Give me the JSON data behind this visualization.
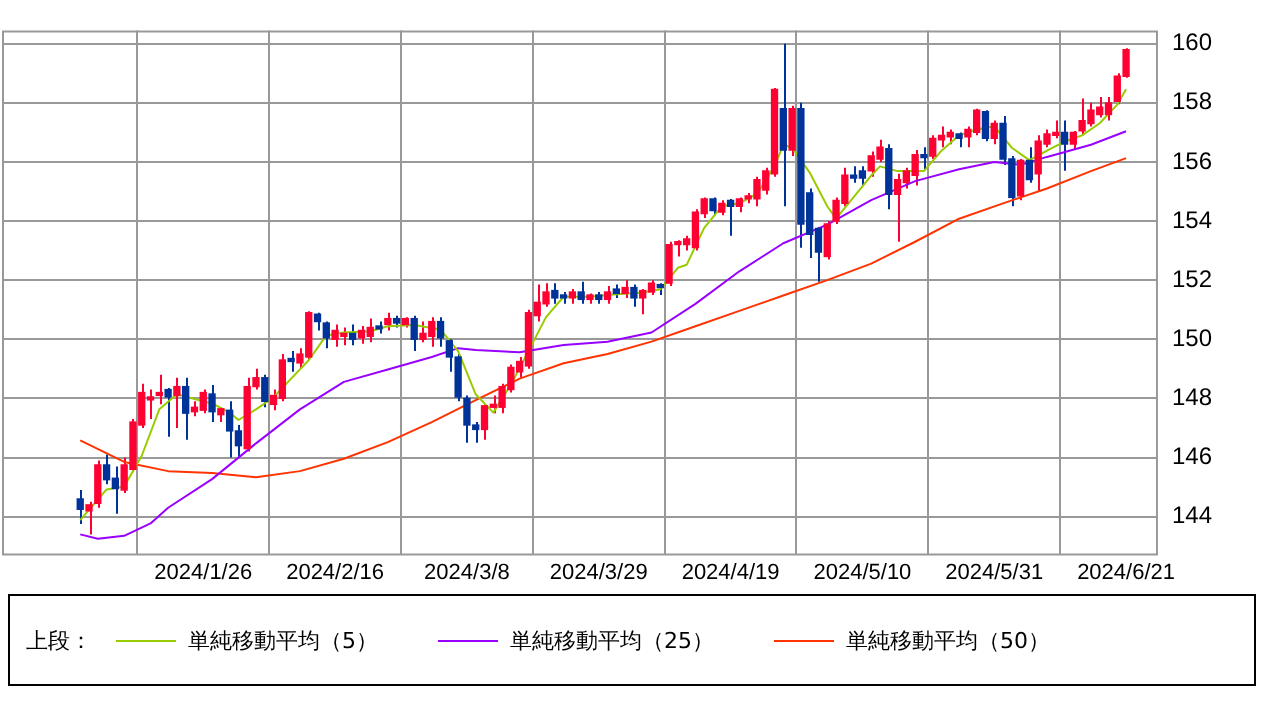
{
  "chart_data": {
    "type": "candlestick",
    "legend_title": "上段：",
    "legend": "bottom",
    "grid": true,
    "categories": [
      null,
      null,
      null,
      null,
      null,
      null,
      null,
      null,
      null,
      null,
      null,
      null,
      null,
      null,
      "2024/1/26",
      null,
      null,
      null,
      null,
      null,
      null,
      null,
      null,
      null,
      null,
      null,
      null,
      null,
      null,
      "2024/2/16",
      null,
      null,
      null,
      null,
      null,
      null,
      null,
      null,
      null,
      null,
      null,
      null,
      null,
      null,
      "2024/3/8",
      null,
      null,
      null,
      null,
      null,
      null,
      null,
      null,
      null,
      null,
      null,
      null,
      null,
      null,
      "2024/3/29",
      null,
      null,
      null,
      null,
      null,
      null,
      null,
      null,
      null,
      null,
      null,
      null,
      null,
      null,
      "2024/4/19",
      null,
      null,
      null,
      null,
      null,
      null,
      null,
      null,
      null,
      null,
      null,
      null,
      null,
      null,
      "2024/5/10",
      null,
      null,
      null,
      null,
      null,
      null,
      null,
      null,
      null,
      null,
      null,
      null,
      null,
      null,
      "2024/5/31",
      null,
      null,
      null,
      null,
      null,
      null,
      null,
      null,
      null,
      null,
      null,
      null,
      null,
      null,
      "2024/6/21"
    ],
    "ohlc": [
      [
        144.6,
        144.9,
        143.75,
        144.25
      ],
      [
        144.2,
        144.5,
        143.4,
        144.4
      ],
      [
        144.45,
        145.9,
        144.3,
        145.75
      ],
      [
        145.75,
        146.1,
        145.1,
        145.25
      ],
      [
        145.3,
        145.7,
        144.1,
        144.95
      ],
      [
        144.9,
        146.0,
        144.8,
        145.75
      ],
      [
        145.6,
        147.3,
        145.5,
        147.2
      ],
      [
        147.1,
        148.5,
        147.0,
        148.2
      ],
      [
        147.95,
        148.3,
        147.3,
        148.05
      ],
      [
        148.1,
        148.8,
        147.8,
        148.2
      ],
      [
        148.3,
        148.35,
        146.7,
        148.05
      ],
      [
        148.1,
        148.7,
        147.0,
        148.4
      ],
      [
        148.4,
        148.7,
        146.6,
        147.5
      ],
      [
        147.55,
        147.9,
        147.4,
        147.7
      ],
      [
        147.6,
        148.3,
        147.5,
        148.2
      ],
      [
        148.15,
        148.45,
        147.2,
        147.55
      ],
      [
        147.45,
        147.7,
        147.2,
        147.65
      ],
      [
        147.6,
        147.9,
        146.0,
        146.9
      ],
      [
        146.9,
        147.1,
        146.0,
        146.4
      ],
      [
        146.3,
        148.7,
        146.2,
        148.4
      ],
      [
        148.4,
        149.0,
        148.3,
        148.7
      ],
      [
        148.7,
        148.8,
        147.7,
        147.9
      ],
      [
        147.8,
        148.3,
        147.6,
        148.1
      ],
      [
        148.0,
        149.5,
        147.9,
        149.3
      ],
      [
        149.35,
        149.6,
        148.9,
        149.25
      ],
      [
        149.2,
        149.7,
        149.0,
        149.5
      ],
      [
        149.4,
        150.95,
        149.3,
        150.9
      ],
      [
        150.85,
        150.9,
        150.3,
        150.6
      ],
      [
        150.55,
        150.6,
        149.7,
        150.05
      ],
      [
        150.0,
        150.5,
        149.75,
        150.3
      ],
      [
        150.1,
        150.4,
        149.8,
        150.2
      ],
      [
        150.2,
        150.5,
        149.8,
        150.0
      ],
      [
        150.05,
        150.45,
        149.85,
        150.3
      ],
      [
        150.1,
        150.7,
        149.9,
        150.4
      ],
      [
        150.45,
        150.6,
        150.2,
        150.35
      ],
      [
        150.5,
        150.9,
        150.3,
        150.7
      ],
      [
        150.7,
        150.8,
        150.4,
        150.55
      ],
      [
        150.5,
        150.75,
        150.4,
        150.7
      ],
      [
        150.7,
        150.8,
        149.6,
        150.0
      ],
      [
        150.0,
        150.6,
        149.9,
        150.2
      ],
      [
        150.1,
        150.75,
        149.75,
        150.6
      ],
      [
        150.6,
        150.75,
        149.75,
        150.05
      ],
      [
        149.95,
        150.0,
        148.9,
        149.4
      ],
      [
        149.4,
        149.5,
        147.9,
        148.05
      ],
      [
        148.0,
        148.1,
        146.5,
        147.1
      ],
      [
        147.1,
        147.2,
        146.5,
        146.95
      ],
      [
        146.95,
        147.8,
        146.6,
        147.75
      ],
      [
        147.7,
        148.1,
        147.5,
        147.8
      ],
      [
        147.7,
        148.5,
        147.5,
        148.4
      ],
      [
        148.3,
        149.15,
        148.2,
        149.05
      ],
      [
        148.9,
        149.4,
        148.7,
        149.25
      ],
      [
        149.1,
        151.0,
        149.0,
        150.9
      ],
      [
        150.8,
        151.85,
        150.6,
        151.25
      ],
      [
        151.2,
        151.9,
        151.1,
        151.6
      ],
      [
        151.65,
        151.9,
        151.2,
        151.4
      ],
      [
        151.5,
        151.6,
        151.2,
        151.4
      ],
      [
        151.4,
        151.7,
        151.2,
        151.6
      ],
      [
        151.6,
        151.95,
        151.2,
        151.35
      ],
      [
        151.35,
        151.55,
        151.2,
        151.5
      ],
      [
        151.5,
        151.6,
        151.2,
        151.35
      ],
      [
        151.35,
        151.8,
        151.2,
        151.6
      ],
      [
        151.7,
        151.85,
        151.4,
        151.55
      ],
      [
        151.55,
        152.0,
        151.4,
        151.75
      ],
      [
        151.75,
        151.85,
        151.1,
        151.4
      ],
      [
        151.4,
        151.7,
        150.85,
        151.65
      ],
      [
        151.6,
        152.0,
        151.5,
        151.9
      ],
      [
        151.85,
        151.9,
        151.5,
        151.75
      ],
      [
        151.9,
        153.3,
        151.8,
        153.2
      ],
      [
        153.2,
        153.35,
        152.8,
        153.3
      ],
      [
        153.2,
        153.5,
        153.0,
        153.4
      ],
      [
        153.1,
        154.4,
        153.0,
        154.3
      ],
      [
        154.25,
        154.8,
        154.1,
        154.75
      ],
      [
        154.75,
        154.8,
        154.2,
        154.35
      ],
      [
        154.3,
        154.7,
        154.2,
        154.6
      ],
      [
        154.7,
        154.75,
        153.5,
        154.5
      ],
      [
        154.5,
        154.8,
        154.3,
        154.75
      ],
      [
        154.75,
        154.95,
        154.6,
        154.85
      ],
      [
        154.75,
        155.5,
        154.5,
        155.4
      ],
      [
        155.05,
        155.8,
        154.9,
        155.7
      ],
      [
        155.6,
        158.5,
        155.5,
        158.45
      ],
      [
        157.8,
        160.0,
        154.5,
        156.4
      ],
      [
        156.4,
        157.9,
        156.2,
        157.8
      ],
      [
        157.8,
        158.0,
        153.1,
        153.9
      ],
      [
        154.95,
        155.1,
        152.75,
        153.55
      ],
      [
        153.75,
        153.8,
        151.95,
        152.95
      ],
      [
        152.8,
        154.0,
        152.7,
        153.9
      ],
      [
        154.0,
        154.8,
        153.9,
        154.7
      ],
      [
        154.6,
        155.8,
        154.5,
        155.55
      ],
      [
        155.55,
        155.85,
        155.3,
        155.45
      ],
      [
        155.7,
        155.85,
        155.2,
        155.45
      ],
      [
        155.7,
        156.35,
        155.5,
        156.2
      ],
      [
        156.1,
        156.75,
        156.0,
        156.5
      ],
      [
        156.45,
        156.6,
        154.4,
        154.9
      ],
      [
        154.9,
        155.6,
        153.3,
        155.4
      ],
      [
        155.3,
        155.8,
        155.1,
        155.7
      ],
      [
        155.55,
        156.4,
        155.2,
        156.25
      ],
      [
        156.25,
        156.5,
        155.75,
        156.15
      ],
      [
        156.2,
        156.9,
        156.1,
        156.8
      ],
      [
        156.75,
        157.2,
        156.5,
        156.9
      ],
      [
        156.85,
        157.1,
        156.6,
        157.0
      ],
      [
        156.95,
        157.0,
        156.5,
        156.8
      ],
      [
        156.85,
        157.2,
        156.5,
        157.1
      ],
      [
        157.0,
        157.8,
        156.9,
        157.75
      ],
      [
        157.7,
        157.75,
        156.7,
        156.8
      ],
      [
        156.8,
        157.4,
        156.6,
        157.3
      ],
      [
        157.3,
        157.55,
        155.9,
        156.1
      ],
      [
        156.1,
        156.2,
        154.5,
        154.8
      ],
      [
        154.85,
        156.1,
        154.7,
        156.05
      ],
      [
        156.05,
        156.5,
        155.3,
        155.4
      ],
      [
        155.6,
        156.9,
        155.0,
        156.7
      ],
      [
        156.6,
        157.1,
        156.5,
        156.95
      ],
      [
        156.9,
        157.4,
        156.8,
        157.0
      ],
      [
        157.0,
        157.4,
        155.7,
        156.6
      ],
      [
        156.6,
        157.05,
        156.4,
        157.0
      ],
      [
        157.05,
        158.15,
        156.9,
        157.4
      ],
      [
        157.3,
        158.0,
        157.2,
        157.75
      ],
      [
        157.6,
        158.2,
        157.5,
        157.85
      ],
      [
        157.6,
        158.2,
        157.4,
        158.0
      ],
      [
        158.05,
        159.0,
        157.95,
        158.9
      ],
      [
        158.9,
        159.85,
        158.85,
        159.8
      ]
    ],
    "series": [
      {
        "name": "単純移動平均（5）",
        "type": "line",
        "color": "#99cc00",
        "values": [
          143.88,
          null,
          null,
          144.92,
          null,
          145.02,
          null,
          146.06,
          null,
          147.63,
          null,
          148.14,
          null,
          147.98,
          null,
          147.83,
          null,
          147.52,
          147.27,
          null,
          147.63,
          null,
          148.04,
          null,
          148.67,
          null,
          149.29,
          null,
          150.13,
          null,
          150.23,
          null,
          null,
          150.27,
          null,
          150.44,
          null,
          null,
          150.48,
          null,
          null,
          150.33,
          null,
          149.6,
          null,
          148.14,
          null,
          147.52,
          null,
          148.46,
          null,
          149.6,
          null,
          150.75,
          null,
          151.44,
          null,
          null,
          151.44,
          null,
          null,
          151.52,
          null,
          null,
          151.58,
          null,
          151.69,
          null,
          152.42,
          152.52,
          null,
          153.77,
          null,
          154.5,
          null,
          154.6,
          null,
          154.92,
          null,
          155.85,
          156.58,
          156.48,
          null,
          155.64,
          null,
          154.5,
          154.08,
          null,
          154.81,
          null,
          155.54,
          155.85,
          null,
          155.69,
          null,
          155.69,
          155.69,
          null,
          156.38,
          null,
          156.9,
          null,
          157.1,
          null,
          157.21,
          null,
          156.48,
          null,
          156.06,
          null,
          156.38,
          null,
          156.69,
          null,
          156.9,
          null,
          157.31,
          null,
          157.94,
          158.46
        ]
      },
      {
        "name": "単純移動平均（25）",
        "type": "line",
        "color": "#9900ff",
        "values": [
          143.4,
          null,
          143.25,
          null,
          null,
          143.35,
          null,
          null,
          143.77,
          null,
          144.3,
          null,
          null,
          null,
          null,
          145.27,
          null,
          null,
          null,
          null,
          146.48,
          null,
          null,
          null,
          null,
          147.63,
          null,
          null,
          null,
          null,
          148.56,
          null,
          null,
          null,
          null,
          148.98,
          null,
          null,
          null,
          null,
          149.4,
          null,
          null,
          149.7,
          null,
          149.64,
          null,
          null,
          null,
          null,
          149.56,
          null,
          null,
          null,
          null,
          149.81,
          null,
          null,
          null,
          null,
          149.92,
          null,
          null,
          null,
          null,
          150.23,
          null,
          null,
          null,
          null,
          151.2,
          null,
          null,
          null,
          null,
          152.3,
          null,
          null,
          null,
          null,
          153.25,
          null,
          null,
          null,
          null,
          153.88,
          null,
          null,
          null,
          null,
          154.71,
          null,
          null,
          null,
          null,
          155.35,
          null,
          null,
          null,
          null,
          155.75,
          null,
          null,
          null,
          156.0,
          null,
          null,
          155.9,
          null,
          null,
          156.17,
          null,
          null,
          null,
          null,
          156.58,
          null,
          null,
          null,
          157.04
        ]
      },
      {
        "name": "単純移動平均（50）",
        "type": "line",
        "color": "#ff3300",
        "values": [
          146.58,
          null,
          null,
          null,
          null,
          145.85,
          null,
          null,
          null,
          null,
          145.54,
          null,
          null,
          null,
          null,
          145.48,
          null,
          null,
          null,
          null,
          145.33,
          null,
          null,
          null,
          null,
          145.54,
          null,
          null,
          null,
          null,
          145.96,
          null,
          null,
          null,
          null,
          146.52,
          null,
          null,
          null,
          null,
          147.2,
          null,
          null,
          null,
          null,
          147.94,
          null,
          null,
          null,
          null,
          148.67,
          null,
          null,
          null,
          null,
          149.19,
          null,
          null,
          null,
          null,
          149.5,
          null,
          null,
          null,
          null,
          149.92,
          null,
          null,
          null,
          null,
          150.44,
          null,
          null,
          null,
          null,
          150.96,
          null,
          null,
          null,
          null,
          151.48,
          null,
          null,
          null,
          null,
          152.0,
          null,
          null,
          null,
          null,
          152.56,
          null,
          null,
          null,
          null,
          153.3,
          null,
          null,
          null,
          null,
          154.08,
          null,
          null,
          null,
          null,
          154.6,
          null,
          null,
          null,
          null,
          155.1,
          null,
          null,
          null,
          null,
          155.69,
          null,
          null,
          null,
          156.13
        ]
      }
    ],
    "ylim": [
      142.75,
      160.45
    ],
    "yticks": [
      144,
      146,
      148,
      150,
      152,
      154,
      156,
      158,
      160
    ]
  }
}
